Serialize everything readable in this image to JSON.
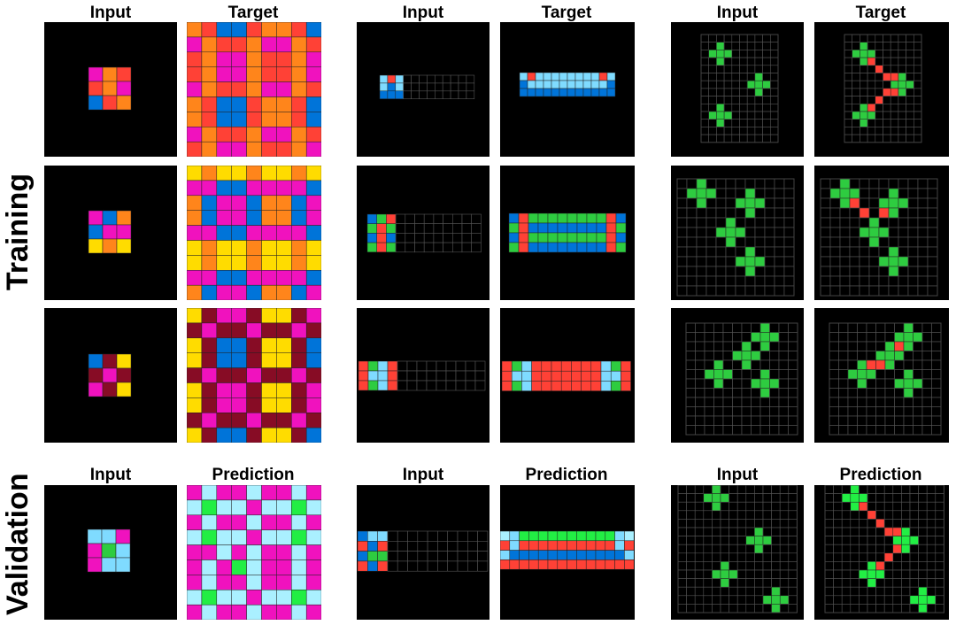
{
  "labels": {
    "input": "Input",
    "target": "Target",
    "prediction": "Prediction",
    "training": "Training",
    "validation": "Validation"
  },
  "colors": {
    "background": "#000000",
    "grid_line": "#555555",
    "panel_border": "#333333",
    "magenta": "#f012be",
    "orange": "#ff851b",
    "blue": "#0074d9",
    "red": "#ff4136",
    "yellow": "#ffdc00",
    "maroon": "#870c25",
    "light_blue": "#7fdbff",
    "green": "#2ecc40",
    "bright_green": "#22ee44",
    "pale_blue": "#aaf0ff"
  }
}
